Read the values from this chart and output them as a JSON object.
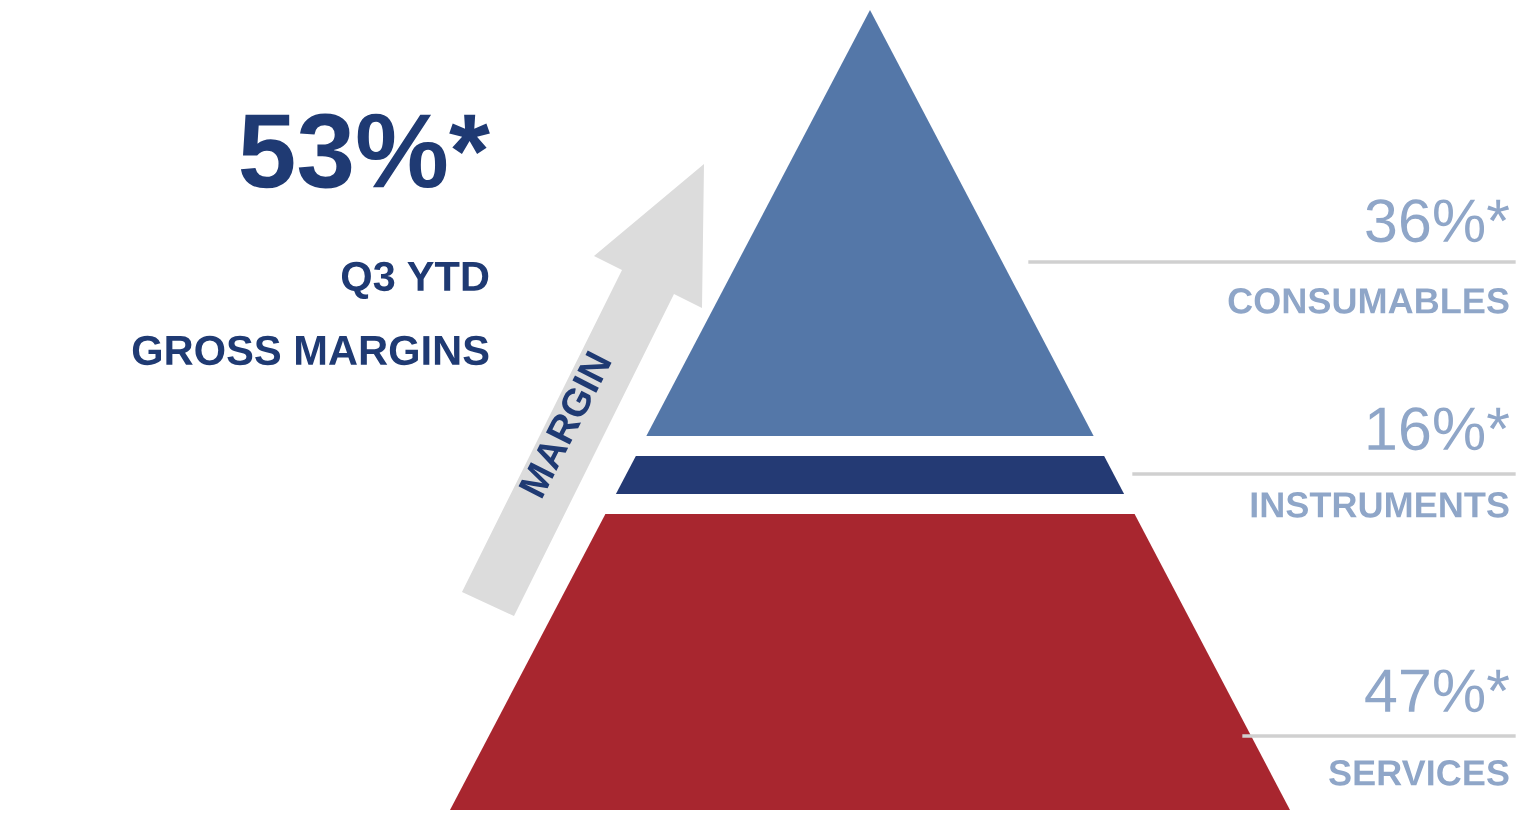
{
  "chart_data": {
    "type": "other",
    "categories": [
      "CONSUMABLES",
      "INSTRUMENTS",
      "SERVICES"
    ],
    "values": [
      36,
      16,
      47
    ],
    "value_labels": [
      "36%*",
      "16%*",
      "47%*"
    ],
    "colors": [
      "#5477a8",
      "#243a74",
      "#a8262f"
    ],
    "annotations": [
      "53%*",
      "Q3 YTD",
      "GROSS MARGINS",
      "MARGIN"
    ]
  }
}
